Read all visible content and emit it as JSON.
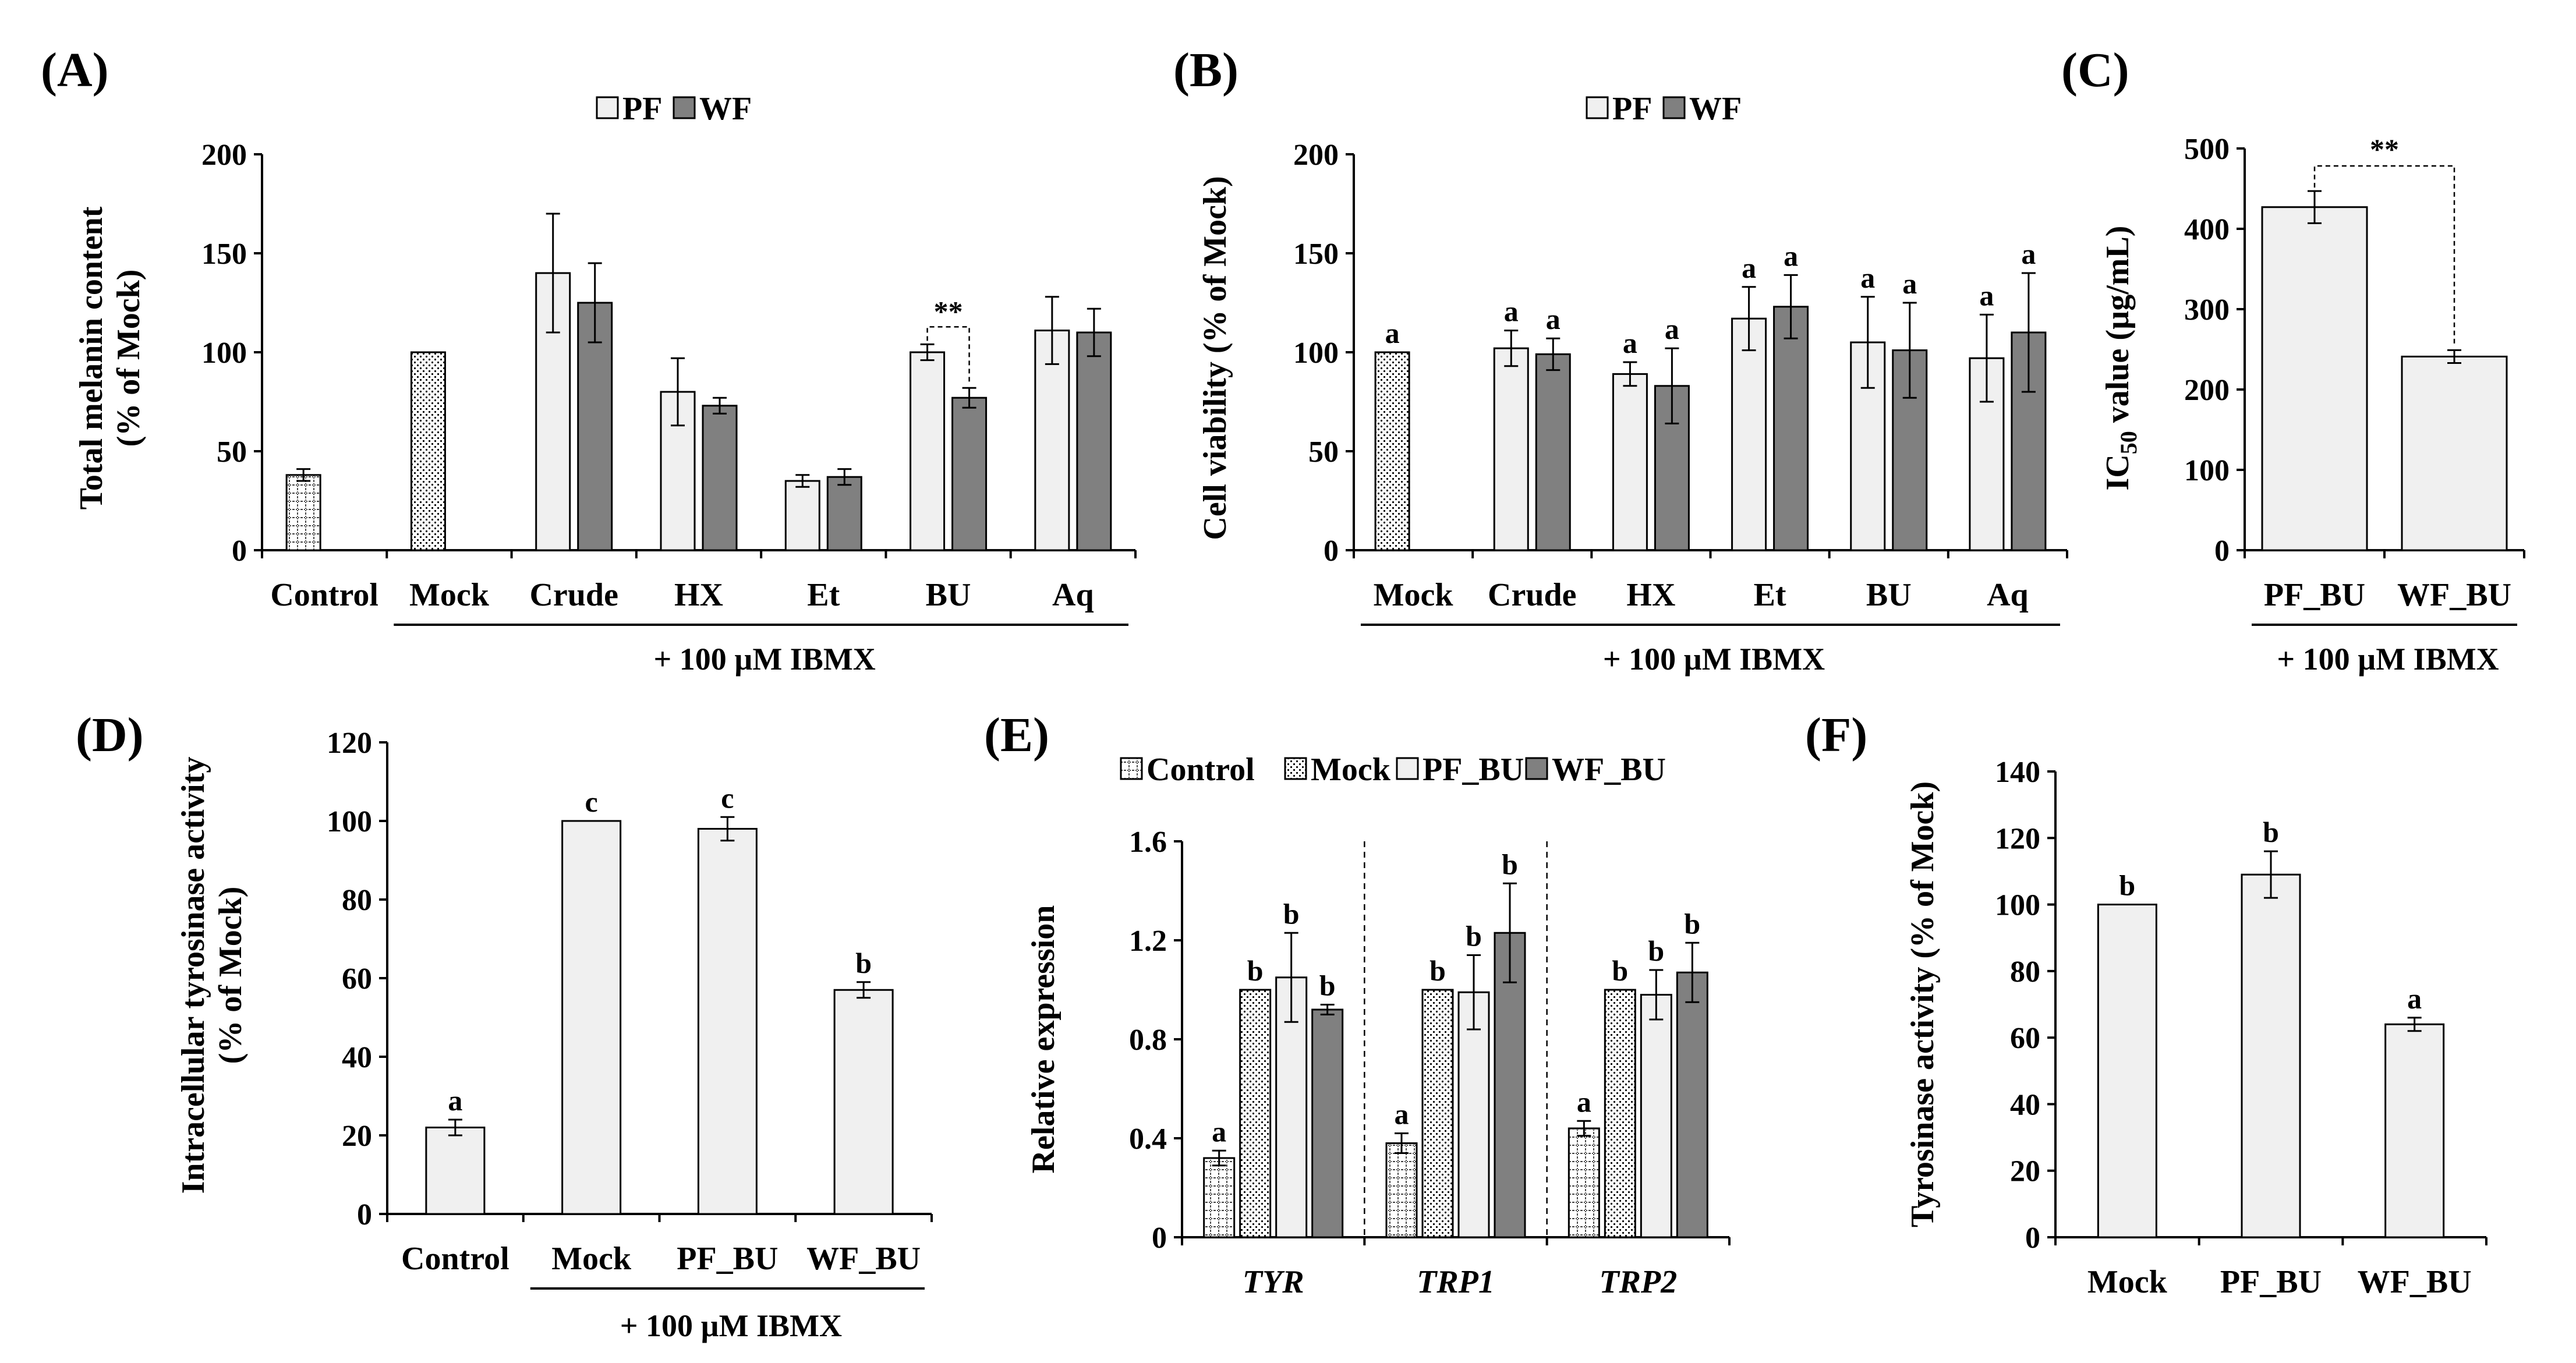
{
  "colors": {
    "light": "#f0f0f0",
    "dark": "#808080",
    "stroke": "#000000"
  },
  "chart_data": [
    {
      "panel": "(A)",
      "type": "bar",
      "ylabel": [
        "Total melanin content",
        "(% of Mock)"
      ],
      "ylim": [
        0,
        200
      ],
      "yticks": [
        0,
        50,
        100,
        150,
        200
      ],
      "categories": [
        "Control",
        "Mock",
        "Crude",
        "HX",
        "Et",
        "BU",
        "Aq"
      ],
      "legend": [
        {
          "name": "PF",
          "pattern": "light"
        },
        {
          "name": "WF",
          "pattern": "dark"
        }
      ],
      "series": [
        {
          "name": "PF",
          "pattern": "light",
          "values": [
            null,
            null,
            140,
            80,
            35,
            100,
            111
          ],
          "errors": [
            null,
            null,
            30,
            17,
            3,
            4,
            17
          ]
        },
        {
          "name": "WF",
          "pattern": "dark",
          "values": [
            null,
            null,
            125,
            73,
            37,
            77,
            110
          ],
          "errors": [
            null,
            null,
            20,
            4,
            4,
            5,
            12
          ]
        }
      ],
      "singles": [
        {
          "category": "Control",
          "value": 38,
          "error": 3,
          "pattern": "grid"
        },
        {
          "category": "Mock",
          "value": 100,
          "error": 0,
          "pattern": "dots"
        }
      ],
      "brackets": [
        {
          "label": "**",
          "category": "BU"
        }
      ],
      "footer": "+ 100 µM IBMX"
    },
    {
      "panel": "(B)",
      "type": "bar",
      "ylabel": [
        "Cell viability (% of Mock)"
      ],
      "ylim": [
        0,
        200
      ],
      "yticks": [
        0,
        50,
        100,
        150,
        200
      ],
      "categories": [
        "Mock",
        "Crude",
        "HX",
        "Et",
        "BU",
        "Aq"
      ],
      "legend": [
        {
          "name": "PF",
          "pattern": "light"
        },
        {
          "name": "WF",
          "pattern": "dark"
        }
      ],
      "series": [
        {
          "name": "PF",
          "pattern": "light",
          "values": [
            null,
            102,
            89,
            117,
            105,
            97
          ],
          "errors": [
            null,
            9,
            6,
            16,
            23,
            22
          ],
          "labels": [
            null,
            "a",
            "a",
            "a",
            "a",
            "a"
          ]
        },
        {
          "name": "WF",
          "pattern": "dark",
          "values": [
            null,
            99,
            83,
            123,
            101,
            110
          ],
          "errors": [
            null,
            8,
            19,
            16,
            24,
            30
          ],
          "labels": [
            null,
            "a",
            "a",
            "a",
            "a",
            "a"
          ]
        }
      ],
      "singles": [
        {
          "category": "Mock",
          "value": 100,
          "error": 0,
          "pattern": "dots",
          "label": "a"
        }
      ],
      "footer": "+ 100 µM IBMX"
    },
    {
      "panel": "(C)",
      "type": "bar",
      "ylabel": [
        "IC",
        "50",
        " value (µg/mL)"
      ],
      "ylim": [
        0,
        500
      ],
      "yticks": [
        0,
        100,
        200,
        300,
        400,
        500
      ],
      "categories": [
        "PF_BU",
        "WF_BU"
      ],
      "values": [
        427,
        241
      ],
      "errors": [
        20,
        8
      ],
      "bracket": "**",
      "footer": "+ 100 µM IBMX"
    },
    {
      "panel": "(D)",
      "type": "bar",
      "ylabel": [
        "Intracellular tyrosinase activity",
        "(% of Mock)"
      ],
      "ylim": [
        0,
        120
      ],
      "yticks": [
        0,
        20,
        40,
        60,
        80,
        100,
        120
      ],
      "categories": [
        "Control",
        "Mock",
        "PF_BU",
        "WF_BU"
      ],
      "values": [
        22,
        100,
        98,
        57
      ],
      "errors": [
        2,
        0,
        3,
        2
      ],
      "labels": [
        "a",
        "c",
        "c",
        "b"
      ],
      "footer": "+ 100 µM IBMX"
    },
    {
      "panel": "(E)",
      "type": "bar",
      "ylabel": [
        "Relative expression"
      ],
      "ylim": [
        0,
        1.6
      ],
      "yticks": [
        "0",
        "0.4",
        "0.8",
        "1.2",
        "1.6"
      ],
      "categories": [
        "TYR",
        "TRP1",
        "TRP2"
      ],
      "legend": [
        {
          "name": "Control",
          "pattern": "grid"
        },
        {
          "name": "Mock",
          "pattern": "dots"
        },
        {
          "name": "PF_BU",
          "pattern": "light"
        },
        {
          "name": "WF_BU",
          "pattern": "dark"
        }
      ],
      "series": [
        {
          "name": "Control",
          "pattern": "grid",
          "values": [
            0.32,
            0.38,
            0.44
          ],
          "errors": [
            0.03,
            0.04,
            0.03
          ],
          "labels": [
            "a",
            "a",
            "a"
          ]
        },
        {
          "name": "Mock",
          "pattern": "dots",
          "values": [
            1.0,
            1.0,
            1.0
          ],
          "errors": [
            0,
            0,
            0
          ],
          "labels": [
            "b",
            "b",
            "b"
          ]
        },
        {
          "name": "PF_BU",
          "pattern": "light",
          "values": [
            1.05,
            0.99,
            0.98
          ],
          "errors": [
            0.18,
            0.15,
            0.1
          ],
          "labels": [
            "b",
            "b",
            "b"
          ]
        },
        {
          "name": "WF_BU",
          "pattern": "dark",
          "values": [
            0.92,
            1.23,
            1.07
          ],
          "errors": [
            0.02,
            0.2,
            0.12
          ],
          "labels": [
            "b",
            "b",
            "b"
          ]
        }
      ]
    },
    {
      "panel": "(F)",
      "type": "bar",
      "ylabel": [
        "Tyrosinase activity (% of Mock)"
      ],
      "ylim": [
        0,
        140
      ],
      "yticks": [
        0,
        20,
        40,
        60,
        80,
        100,
        120,
        140
      ],
      "categories": [
        "Mock",
        "PF_BU",
        "WF_BU"
      ],
      "values": [
        100,
        109,
        64
      ],
      "errors": [
        0,
        7,
        2
      ],
      "labels": [
        "b",
        "b",
        "a"
      ]
    }
  ]
}
